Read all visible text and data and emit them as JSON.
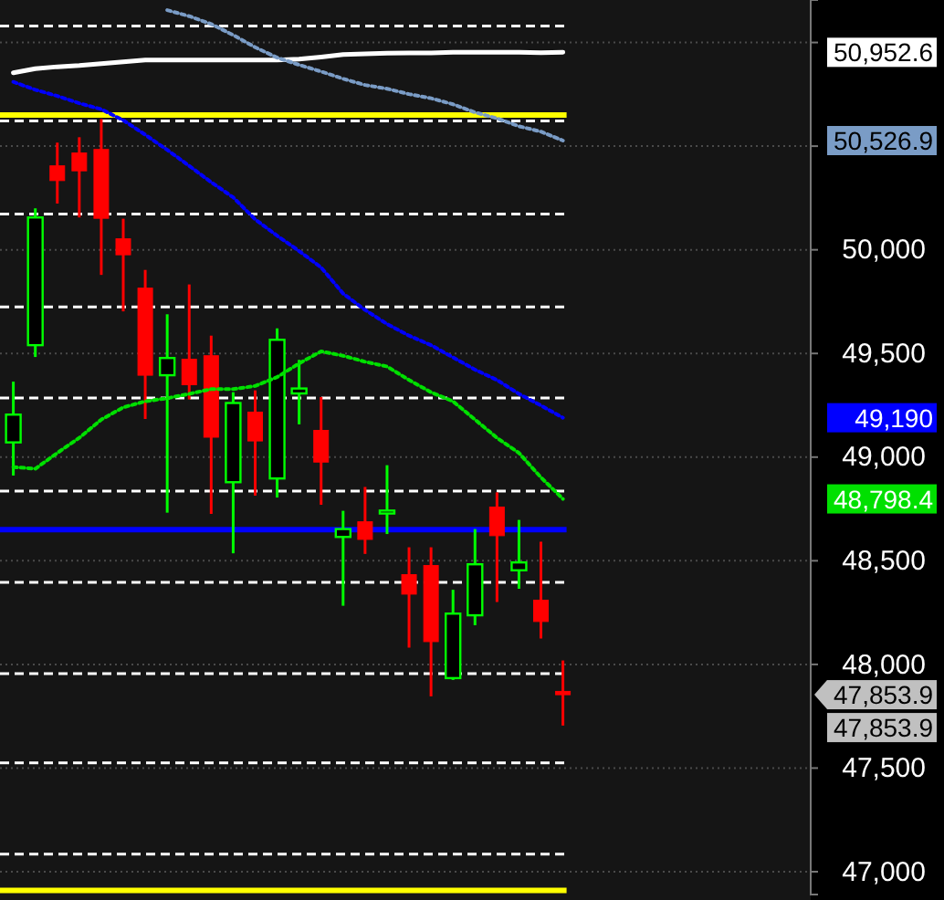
{
  "chart_data": {
    "type": "candlestick",
    "categories": [
      null,
      null,
      null,
      null,
      null,
      null,
      null,
      null,
      null,
      null,
      null,
      null,
      null,
      null,
      null,
      null,
      null,
      null,
      null,
      null,
      null,
      null,
      null,
      null,
      null,
      null
    ],
    "ohlc": [
      [
        49071,
        49364,
        48911,
        49205
      ],
      [
        49540,
        50200,
        49483,
        50156
      ],
      [
        50405,
        50517,
        50223,
        50334
      ],
      [
        50467,
        50543,
        50156,
        50381
      ],
      [
        50484,
        50631,
        49879,
        50152
      ],
      [
        50053,
        50150,
        49703,
        49976
      ],
      [
        49815,
        49903,
        49184,
        49395
      ],
      [
        49395,
        49689,
        48732,
        49478
      ],
      [
        49472,
        49833,
        49278,
        49349
      ],
      [
        49489,
        49586,
        48726,
        49096
      ],
      [
        48879,
        49313,
        48536,
        49261
      ],
      [
        49217,
        49322,
        48814,
        49078
      ],
      [
        48897,
        49621,
        48805,
        49566
      ],
      [
        49307,
        49469,
        49158,
        49331
      ],
      [
        49129,
        49290,
        48770,
        48976
      ],
      [
        48615,
        48741,
        48283,
        48653
      ],
      [
        48688,
        48856,
        48533,
        48603
      ],
      [
        48728,
        48961,
        48629,
        48742
      ],
      [
        48433,
        48565,
        48081,
        48339
      ],
      [
        48477,
        48565,
        47846,
        48110
      ],
      [
        47934,
        48360,
        47925,
        48245
      ],
      [
        48237,
        48653,
        48189,
        48483
      ],
      [
        48759,
        48830,
        48301,
        48621
      ],
      [
        48454,
        48697,
        48365,
        48492
      ],
      [
        48310,
        48592,
        48125,
        48207
      ],
      [
        47870,
        48019,
        47705,
        47853.9
      ]
    ],
    "colors": [
      "#00ff00",
      "#00ff00",
      "#ff0000",
      "#ff0000",
      "#ff0000",
      "#ff0000",
      "#ff0000",
      "#00ff00",
      "#ff0000",
      "#ff0000",
      "#00ff00",
      "#ff0000",
      "#00ff00",
      "#00ff00",
      "#ff0000",
      "#00ff00",
      "#ff0000",
      "#00ff00",
      "#ff0000",
      "#ff0000",
      "#00ff00",
      "#00ff00",
      "#ff0000",
      "#00ff00",
      "#ff0000",
      "#ff0000"
    ],
    "series": [
      {
        "type": "line",
        "color": "#ffffff",
        "line_style": "solid",
        "values": [
          50854,
          50874,
          50883,
          50889,
          50898,
          50907,
          50915,
          50915,
          50915,
          50915,
          50915,
          50915,
          50915,
          50920,
          50930,
          50942,
          50945,
          50948,
          50950,
          50950,
          50953,
          50953,
          50953,
          50953,
          50951,
          50952.6
        ]
      },
      {
        "type": "line",
        "color": "#7a9cc6",
        "line_style": "dotted",
        "values": [
          null,
          null,
          null,
          null,
          null,
          null,
          null,
          51156,
          51127,
          51089,
          51036,
          50977,
          50927,
          50892,
          50860,
          50825,
          50795,
          50777,
          50751,
          50731,
          50702,
          50663,
          50634,
          50596,
          50570,
          50526.9
        ]
      },
      {
        "type": "line",
        "color": "#0000ff",
        "line_style": "dotted",
        "values": [
          50810,
          50772,
          50742,
          50707,
          50678,
          50625,
          50555,
          50482,
          50405,
          50326,
          50253,
          50147,
          50068,
          49994,
          49915,
          49789,
          49710,
          49642,
          49586,
          49540,
          49481,
          49422,
          49372,
          49305,
          49249,
          49190
        ]
      },
      {
        "type": "line",
        "color": "#00e000",
        "line_style": "dotted",
        "values": [
          48952,
          48944,
          49020,
          49093,
          49181,
          49240,
          49269,
          49284,
          49305,
          49328,
          49328,
          49343,
          49386,
          49452,
          49510,
          49489,
          49460,
          49437,
          49372,
          49313,
          49269,
          49181,
          49093,
          49020,
          48902,
          48798.4
        ]
      }
    ],
    "annotations": [
      "50,952.6",
      "50,526.9",
      "49,190",
      "48,798.4",
      "47,853.9",
      "47,853.9"
    ],
    "ref_lines": [
      {
        "axis": "y",
        "value": 50650,
        "color": "#ffff00",
        "line_style": "solid"
      },
      {
        "axis": "y",
        "value": 48650,
        "color": "#0000ff",
        "line_style": "solid"
      },
      {
        "axis": "y",
        "value": 46910,
        "color": "#ffff00",
        "line_style": "solid"
      },
      {
        "axis": "y",
        "value": 51080,
        "color": "#ffffff",
        "line_style": "dashed"
      },
      {
        "axis": "y",
        "value": 50622,
        "color": "#ffffff",
        "line_style": "dashed"
      },
      {
        "axis": "y",
        "value": 50173,
        "color": "#ffffff",
        "line_style": "dashed"
      },
      {
        "axis": "y",
        "value": 49725,
        "color": "#ffffff",
        "line_style": "dashed"
      },
      {
        "axis": "y",
        "value": 49285,
        "color": "#ffffff",
        "line_style": "dashed"
      },
      {
        "axis": "y",
        "value": 48836,
        "color": "#ffffff",
        "line_style": "dashed"
      },
      {
        "axis": "y",
        "value": 48396,
        "color": "#ffffff",
        "line_style": "dashed"
      },
      {
        "axis": "y",
        "value": 47956,
        "color": "#ffffff",
        "line_style": "dashed"
      },
      {
        "axis": "y",
        "value": 47525,
        "color": "#ffffff",
        "line_style": "dashed"
      },
      {
        "axis": "y",
        "value": 47085,
        "color": "#ffffff",
        "line_style": "dashed"
      }
    ],
    "ylim": [
      46890,
      51205
    ],
    "yticks": [
      {
        "value": 47000,
        "label": "47,000"
      },
      {
        "value": 47500,
        "label": "47,500"
      },
      {
        "value": 48000,
        "label": "48,000"
      },
      {
        "value": 48500,
        "label": "48,500"
      },
      {
        "value": 49000,
        "label": "49,000"
      },
      {
        "value": 49500,
        "label": "49,500"
      },
      {
        "value": 50000,
        "label": "50,000"
      },
      {
        "value": 50500,
        "label": null
      },
      {
        "value": 51000,
        "label": null
      }
    ],
    "grid": "y",
    "tick_labels": "y"
  }
}
